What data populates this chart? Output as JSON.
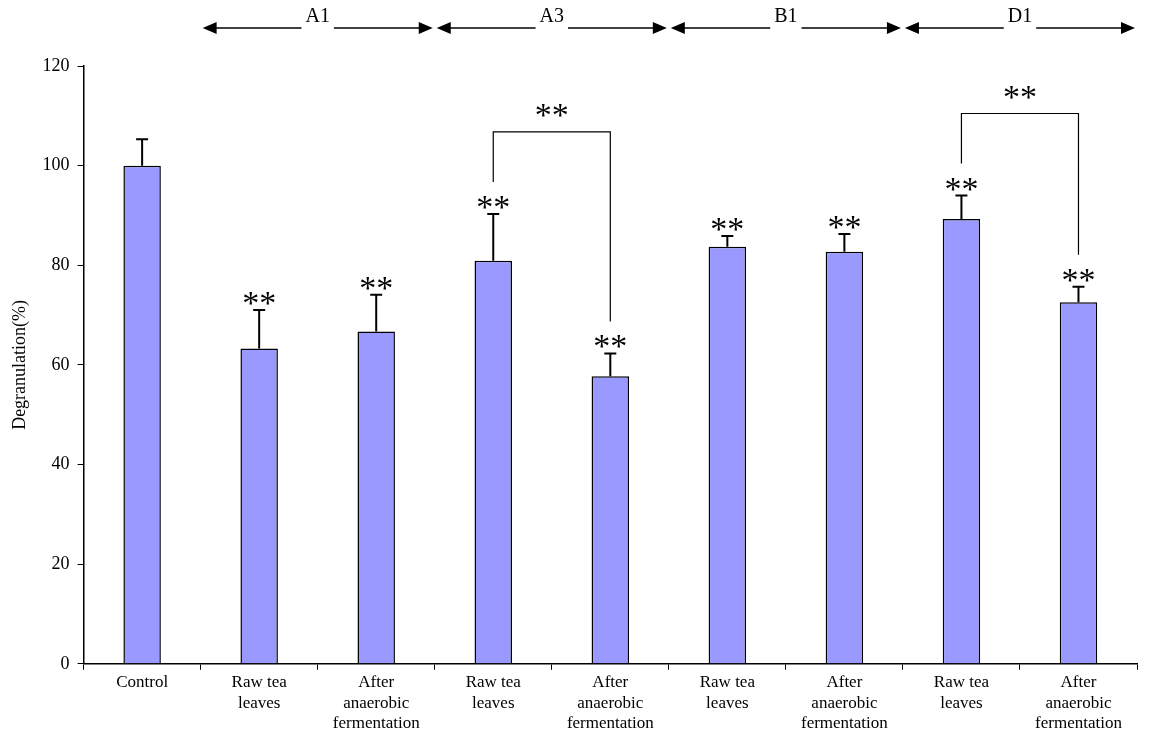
{
  "chart_data": {
    "type": "bar",
    "ylabel": "Degranulation(%)",
    "categories": [
      "Control",
      "Raw tea leaves",
      "After anaerobic fermentation",
      "Raw tea leaves",
      "After anaerobic fermentation",
      "Raw tea leaves",
      "After anaerobic fermentation",
      "Raw tea leaves",
      "After anaerobic fermentation"
    ],
    "values": [
      100,
      63.3,
      66.7,
      80.9,
      57.7,
      83.7,
      82.7,
      89.3,
      72.6
    ],
    "errors": [
      [
        100,
        105.3
      ],
      [
        63.3,
        71.0
      ],
      [
        66.7,
        74.1
      ],
      [
        80.9,
        90.3
      ],
      [
        57.7,
        62.3
      ],
      [
        83.7,
        85.9
      ],
      [
        82.7,
        86.3
      ],
      [
        89.3,
        94.0
      ],
      [
        72.6,
        75.7
      ]
    ],
    "value_labels": [
      null,
      "**",
      "**",
      "**",
      "**",
      "**",
      "**",
      "**",
      "**"
    ],
    "color": "#9999ff",
    "ylim": [
      0,
      120
    ],
    "yticks": [
      0,
      20,
      40,
      60,
      80,
      100,
      120
    ],
    "grid": false,
    "legend": false,
    "annotations": [
      "A1",
      "A3",
      "B1",
      "D1",
      "**",
      "**"
    ]
  }
}
